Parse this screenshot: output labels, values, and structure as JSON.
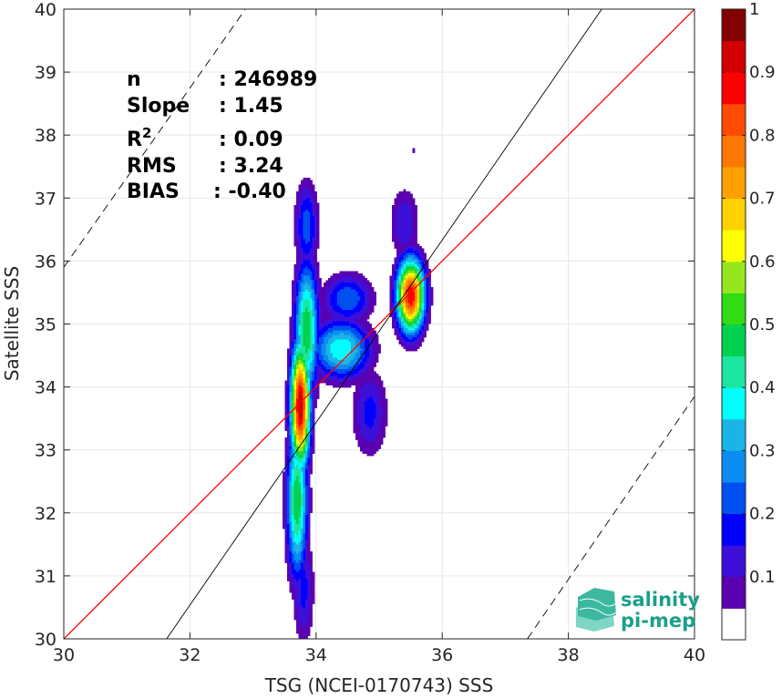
{
  "chart_data": {
    "type": "heatmap",
    "xlabel": "TSG (NCEI-0170743) SSS",
    "ylabel": "Satellite SSS",
    "xlim": [
      30,
      40
    ],
    "ylim": [
      30,
      40
    ],
    "x_ticks": [
      "30",
      "32",
      "34",
      "36",
      "38",
      "40"
    ],
    "y_ticks": [
      "30",
      "31",
      "32",
      "33",
      "34",
      "35",
      "36",
      "37",
      "38",
      "39",
      "40"
    ],
    "grid": true,
    "stats": [
      {
        "name": "n",
        "value": ": 246989"
      },
      {
        "name": "Slope",
        "value": ": 1.45"
      },
      {
        "name": "R",
        "sup": "2",
        "value": ": 0.09"
      },
      {
        "name": "RMS",
        "value": ": 3.24"
      },
      {
        "name": "BIAS",
        "value": ": -0.40"
      }
    ],
    "lines": [
      {
        "kind": "one-to-one",
        "color": "#ff0000",
        "x": [
          30,
          40
        ],
        "y": [
          30,
          40
        ]
      },
      {
        "kind": "regression",
        "color": "#000000",
        "x": [
          31.63,
          38.53
        ],
        "y": [
          30,
          40
        ]
      },
      {
        "kind": "dashed-upper",
        "color": "#000000",
        "x": [
          30,
          32.88
        ],
        "y": [
          35.9,
          40
        ]
      },
      {
        "kind": "dashed-lower",
        "color": "#000000",
        "x": [
          37.35,
          40
        ],
        "y": [
          30,
          33.85
        ]
      }
    ],
    "density_peaks": [
      {
        "x": 33.75,
        "y": 33.7,
        "value": 1.0,
        "sx": 0.11,
        "sy": 0.72
      },
      {
        "x": 35.5,
        "y": 35.45,
        "value": 0.95,
        "sx": 0.16,
        "sy": 0.42
      },
      {
        "x": 33.85,
        "y": 34.9,
        "value": 0.55,
        "sx": 0.14,
        "sy": 0.8
      },
      {
        "x": 33.7,
        "y": 32.2,
        "value": 0.55,
        "sx": 0.12,
        "sy": 0.9
      },
      {
        "x": 34.4,
        "y": 34.6,
        "value": 0.45,
        "sx": 0.35,
        "sy": 0.35
      },
      {
        "x": 33.85,
        "y": 36.55,
        "value": 0.28,
        "sx": 0.14,
        "sy": 0.55
      },
      {
        "x": 35.4,
        "y": 36.6,
        "value": 0.2,
        "sx": 0.18,
        "sy": 0.45
      },
      {
        "x": 34.85,
        "y": 33.6,
        "value": 0.22,
        "sx": 0.22,
        "sy": 0.55
      },
      {
        "x": 33.8,
        "y": 30.8,
        "value": 0.22,
        "sx": 0.13,
        "sy": 0.7
      },
      {
        "x": 34.5,
        "y": 35.4,
        "value": 0.3,
        "sx": 0.3,
        "sy": 0.3
      },
      {
        "x": 35.55,
        "y": 37.75,
        "value": 0.12,
        "sx": 0.05,
        "sy": 0.06
      }
    ],
    "colorbar": {
      "levels": [
        0.05,
        0.1,
        0.15,
        0.2,
        0.25,
        0.3,
        0.35,
        0.4,
        0.45,
        0.5,
        0.55,
        0.6,
        0.65,
        0.7,
        0.75,
        0.8,
        0.85,
        0.9,
        0.95,
        1.0
      ],
      "colors": [
        "#ffffff",
        "#5a00b0",
        "#3c10d8",
        "#0000ff",
        "#0050f0",
        "#0a8cf0",
        "#1ab4e6",
        "#00ffff",
        "#1ae6a0",
        "#00d250",
        "#32dc14",
        "#96e61e",
        "#ffff00",
        "#ffd200",
        "#ffa000",
        "#ff7800",
        "#ff4b00",
        "#ff0000",
        "#d20000",
        "#820000"
      ],
      "tick_labels": [
        "0.1",
        "0.2",
        "0.3",
        "0.4",
        "0.5",
        "0.6",
        "0.7",
        "0.8",
        "0.9",
        "1"
      ],
      "tick_values": [
        0.1,
        0.2,
        0.3,
        0.4,
        0.5,
        0.6,
        0.7,
        0.8,
        0.9,
        1.0
      ]
    }
  },
  "logo": {
    "line1": "salinity",
    "line2": "pi-mep"
  }
}
